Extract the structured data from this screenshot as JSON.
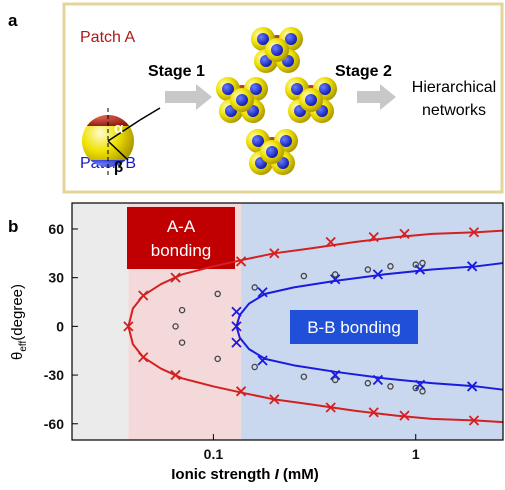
{
  "panel_a": {
    "label": "a",
    "patch_a": "Patch A",
    "patch_b": "Patch B",
    "alpha": "α",
    "beta": "β",
    "stage_1": "Stage 1",
    "stage_2": "Stage 2",
    "result": [
      "Hierarchical",
      "networks"
    ]
  },
  "chart_data": {
    "type": "line",
    "panel_label": "b",
    "xlabel": {
      "text": "Ionic strength",
      "symbol": "I",
      "unit": "(mM)"
    },
    "ylabel": {
      "symbol": "θ",
      "subscript": "eff",
      "unit": "(degree)"
    },
    "xscale": "log",
    "xlim": [
      0.02,
      2.7
    ],
    "ylim": [
      -70,
      76
    ],
    "xticks": [
      0.1,
      1
    ],
    "yticks": [
      -60,
      -30,
      0,
      30,
      60
    ],
    "regions": [
      {
        "x": [
          0.02,
          0.038
        ],
        "color": "#ebebeb"
      },
      {
        "x": [
          0.038,
          0.137
        ],
        "color": "#f3d9d9"
      },
      {
        "x": [
          0.137,
          2.7
        ],
        "color": "#c9d8ef"
      }
    ],
    "annotations": [
      {
        "lines": [
          "A-A",
          "bonding"
        ],
        "color": "#c00000"
      },
      {
        "lines": [
          "B-B bonding"
        ],
        "color": "#2050d8"
      }
    ],
    "series": [
      {
        "style": "curve",
        "color": "#d42020",
        "x": [
          2.7,
          2,
          1.2,
          0.8,
          0.5,
          0.3,
          0.2,
          0.14,
          0.1,
          0.07,
          0.055,
          0.045,
          0.04,
          0.038,
          0.04,
          0.045,
          0.055,
          0.07,
          0.1,
          0.14,
          0.2,
          0.3,
          0.5,
          0.8,
          1.2,
          2,
          2.7
        ],
        "values": [
          59,
          58,
          57,
          55,
          52,
          48,
          45,
          41,
          37,
          32,
          26,
          19,
          11,
          0,
          -11,
          -19,
          -26,
          -32,
          -37,
          -41,
          -45,
          -48,
          -52,
          -55,
          -57,
          -58,
          -59
        ]
      },
      {
        "style": "cross",
        "color": "#d42020",
        "x": [
          0.038,
          0.045,
          0.045,
          0.065,
          0.065,
          0.137,
          0.137,
          0.2,
          0.2,
          0.38,
          0.38,
          0.62,
          0.62,
          0.88,
          0.88,
          1.94,
          1.94
        ],
        "values": [
          0,
          19,
          -19,
          30,
          -30,
          40,
          -40,
          45,
          -45,
          52,
          -50,
          55,
          -53,
          57,
          -55,
          58,
          -58
        ]
      },
      {
        "style": "curve",
        "color": "#1a1ae0",
        "x": [
          2.7,
          2,
          1.2,
          0.7,
          0.4,
          0.25,
          0.18,
          0.15,
          0.135,
          0.13,
          0.135,
          0.15,
          0.18,
          0.25,
          0.4,
          0.7,
          1.2,
          2,
          2.7
        ],
        "values": [
          39,
          37,
          35,
          32,
          28,
          24,
          20,
          14,
          7,
          0,
          -7,
          -14,
          -20,
          -24,
          -28,
          -32,
          -35,
          -37,
          -39
        ]
      },
      {
        "style": "cross",
        "color": "#1a1ae0",
        "x": [
          0.13,
          0.13,
          0.13,
          0.175,
          0.175,
          0.4,
          0.4,
          0.65,
          0.65,
          1.05,
          1.05,
          1.9,
          1.9
        ],
        "values": [
          9,
          0,
          -10,
          21,
          -21,
          29,
          -30,
          32,
          -33,
          35,
          -36,
          37,
          -37
        ]
      },
      {
        "style": "circle",
        "color": "#444444",
        "x": [
          0.07,
          0.065,
          0.07,
          0.105,
          0.105,
          0.16,
          0.16,
          0.28,
          0.28,
          0.4,
          0.4,
          0.58,
          0.58,
          0.75,
          0.75,
          1.0,
          1.0,
          1.08,
          1.08
        ],
        "values": [
          10,
          0,
          -10,
          20,
          -20,
          24,
          -25,
          31,
          -31,
          32,
          -33,
          35,
          -35,
          37,
          -37,
          38,
          -38,
          39,
          -40
        ]
      }
    ]
  }
}
